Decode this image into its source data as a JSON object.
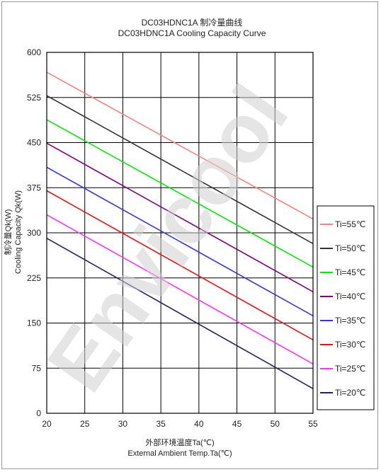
{
  "watermark": "Envicool",
  "chart_data": {
    "type": "line",
    "title_cn": "DC03HDNC1A 制冷量曲线",
    "title_en": "DC03HDNC1A  Cooling Capacity Curve",
    "xlabel_cn": "外部环境温度Ta(℃)",
    "xlabel_en": "External Ambient Temp.Ta(℃)",
    "ylabel_cn": "制冷量Qk(W)",
    "ylabel_en": "Cooling Capacity Qk(W)",
    "xlim": [
      20,
      55
    ],
    "ylim": [
      0,
      600
    ],
    "xticks": [
      20,
      25,
      30,
      35,
      40,
      45,
      50,
      55
    ],
    "yticks": [
      0,
      75,
      150,
      225,
      300,
      375,
      450,
      525,
      600
    ],
    "grid": true,
    "legend_position": "right",
    "series": [
      {
        "name": "Ti=55℃",
        "color": "#ff8080",
        "x": [
          20,
          55
        ],
        "y": [
          567,
          323
        ]
      },
      {
        "name": "Ti=50℃",
        "color": "#333333",
        "x": [
          20,
          55
        ],
        "y": [
          528,
          282
        ]
      },
      {
        "name": "Ti=45℃",
        "color": "#00ee00",
        "x": [
          20,
          55
        ],
        "y": [
          488,
          243
        ]
      },
      {
        "name": "Ti=40℃",
        "color": "#800080",
        "x": [
          20,
          55
        ],
        "y": [
          449,
          202
        ]
      },
      {
        "name": "Ti=35℃",
        "color": "#3333ee",
        "x": [
          20,
          55
        ],
        "y": [
          409,
          162
        ]
      },
      {
        "name": "Ti=30℃",
        "color": "#ee1111",
        "x": [
          20,
          55
        ],
        "y": [
          370,
          122
        ]
      },
      {
        "name": "Ti=25℃",
        "color": "#ff33ff",
        "x": [
          20,
          55
        ],
        "y": [
          330,
          82
        ]
      },
      {
        "name": "Ti=20℃",
        "color": "#222266",
        "x": [
          20,
          55
        ],
        "y": [
          291,
          41
        ]
      }
    ]
  }
}
